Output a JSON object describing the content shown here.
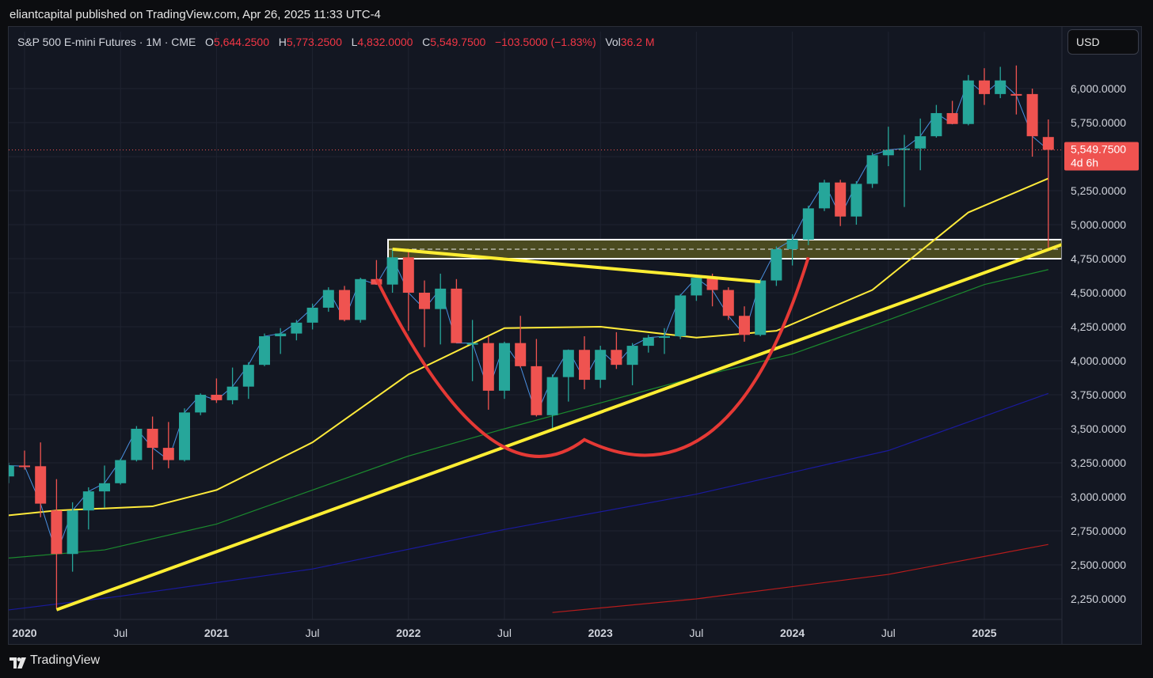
{
  "header": {
    "publish_text": "eliantcapital published on TradingView.com, Apr 26, 2025 11:33 UTC-4"
  },
  "legend": {
    "symbol": "S&P 500 E-mini Futures · 1M · CME",
    "open_label": "O",
    "open_value": "5,644.2500",
    "high_label": "H",
    "high_value": "5,773.2500",
    "low_label": "L",
    "low_value": "4,832.0000",
    "close_label": "C",
    "close_value": "5,549.7500",
    "change": "−103.5000 (−1.83%)",
    "vol_label": "Vol",
    "vol_value": "36.2 M"
  },
  "currency_button": "USD",
  "price_badge": {
    "price": "5,549.7500",
    "countdown": "4d 6h"
  },
  "footer": {
    "brand": "TradingView"
  },
  "colors": {
    "up": "#26a69a",
    "down": "#ef5350",
    "ma_yellow": "#ffeb3b",
    "ma_green": "#1b8a2e",
    "ma_blue": "#1a1a9c",
    "ma_red": "#b71c1c",
    "trend_yellow": "#ffee33",
    "cup_red": "#e53935",
    "zone_fill": "#4a4a20"
  },
  "chart_data": {
    "type": "candlestick",
    "title": "S&P 500 E-mini Futures · 1M · CME",
    "y_ticks": [
      "2,250.0000",
      "2,500.0000",
      "2,750.0000",
      "3,000.0000",
      "3,250.0000",
      "3,500.0000",
      "3,750.0000",
      "4,000.0000",
      "4,250.0000",
      "4,500.0000",
      "4,750.0000",
      "5,000.0000",
      "5,250.0000",
      "5,500.0000",
      "5,750.0000",
      "6,000.0000"
    ],
    "y_tick_values": [
      2250,
      2500,
      2750,
      3000,
      3250,
      3500,
      3750,
      4000,
      4250,
      4500,
      4750,
      5000,
      5250,
      5500,
      5750,
      6000
    ],
    "x_ticks": [
      {
        "label": "2020",
        "date": "2020-01",
        "bold": true
      },
      {
        "label": "Jul",
        "date": "2020-07",
        "bold": false
      },
      {
        "label": "2021",
        "date": "2021-01",
        "bold": true
      },
      {
        "label": "Jul",
        "date": "2021-07",
        "bold": false
      },
      {
        "label": "2022",
        "date": "2022-01",
        "bold": true
      },
      {
        "label": "Jul",
        "date": "2022-07",
        "bold": false
      },
      {
        "label": "2023",
        "date": "2023-01",
        "bold": true
      },
      {
        "label": "Jul",
        "date": "2023-07",
        "bold": false
      },
      {
        "label": "2024",
        "date": "2024-01",
        "bold": true
      },
      {
        "label": "Jul",
        "date": "2024-07",
        "bold": false
      },
      {
        "label": "2025",
        "date": "2025-01",
        "bold": true
      }
    ],
    "ylim": [
      2150,
      6180
    ],
    "candles": [
      {
        "date": "2019-11",
        "o": 3040,
        "h": 3160,
        "l": 3020,
        "c": 3150
      },
      {
        "date": "2019-12",
        "o": 3150,
        "h": 3250,
        "l": 3100,
        "c": 3230
      },
      {
        "date": "2020-01",
        "o": 3230,
        "h": 3340,
        "l": 3200,
        "c": 3225
      },
      {
        "date": "2020-02",
        "o": 3225,
        "h": 3400,
        "l": 2850,
        "c": 2950
      },
      {
        "date": "2020-03",
        "o": 2900,
        "h": 3130,
        "l": 2180,
        "c": 2580
      },
      {
        "date": "2020-04",
        "o": 2580,
        "h": 2960,
        "l": 2450,
        "c": 2900
      },
      {
        "date": "2020-05",
        "o": 2900,
        "h": 3070,
        "l": 2760,
        "c": 3040
      },
      {
        "date": "2020-06",
        "o": 3040,
        "h": 3230,
        "l": 2920,
        "c": 3100
      },
      {
        "date": "2020-07",
        "o": 3100,
        "h": 3280,
        "l": 3090,
        "c": 3270
      },
      {
        "date": "2020-08",
        "o": 3270,
        "h": 3520,
        "l": 3260,
        "c": 3500
      },
      {
        "date": "2020-09",
        "o": 3500,
        "h": 3590,
        "l": 3200,
        "c": 3360
      },
      {
        "date": "2020-10",
        "o": 3360,
        "h": 3550,
        "l": 3210,
        "c": 3270
      },
      {
        "date": "2020-11",
        "o": 3270,
        "h": 3650,
        "l": 3260,
        "c": 3620
      },
      {
        "date": "2020-12",
        "o": 3620,
        "h": 3760,
        "l": 3600,
        "c": 3750
      },
      {
        "date": "2021-01",
        "o": 3750,
        "h": 3870,
        "l": 3690,
        "c": 3710
      },
      {
        "date": "2021-02",
        "o": 3710,
        "h": 3950,
        "l": 3680,
        "c": 3810
      },
      {
        "date": "2021-03",
        "o": 3810,
        "h": 3990,
        "l": 3720,
        "c": 3970
      },
      {
        "date": "2021-04",
        "o": 3970,
        "h": 4200,
        "l": 3960,
        "c": 4180
      },
      {
        "date": "2021-05",
        "o": 4180,
        "h": 4240,
        "l": 4050,
        "c": 4200
      },
      {
        "date": "2021-06",
        "o": 4200,
        "h": 4300,
        "l": 4150,
        "c": 4280
      },
      {
        "date": "2021-07",
        "o": 4280,
        "h": 4420,
        "l": 4230,
        "c": 4390
      },
      {
        "date": "2021-08",
        "o": 4390,
        "h": 4540,
        "l": 4360,
        "c": 4520
      },
      {
        "date": "2021-09",
        "o": 4520,
        "h": 4550,
        "l": 4290,
        "c": 4300
      },
      {
        "date": "2021-10",
        "o": 4300,
        "h": 4610,
        "l": 4280,
        "c": 4600
      },
      {
        "date": "2021-11",
        "o": 4600,
        "h": 4740,
        "l": 4560,
        "c": 4560
      },
      {
        "date": "2021-12",
        "o": 4560,
        "h": 4820,
        "l": 4500,
        "c": 4760
      },
      {
        "date": "2022-01",
        "o": 4760,
        "h": 4810,
        "l": 4220,
        "c": 4500
      },
      {
        "date": "2022-02",
        "o": 4500,
        "h": 4590,
        "l": 4100,
        "c": 4380
      },
      {
        "date": "2022-03",
        "o": 4380,
        "h": 4640,
        "l": 4120,
        "c": 4530
      },
      {
        "date": "2022-04",
        "o": 4530,
        "h": 4600,
        "l": 4130,
        "c": 4130
      },
      {
        "date": "2022-05",
        "o": 4130,
        "h": 4300,
        "l": 3850,
        "c": 4130
      },
      {
        "date": "2022-06",
        "o": 4130,
        "h": 4180,
        "l": 3640,
        "c": 3780
      },
      {
        "date": "2022-07",
        "o": 3780,
        "h": 4140,
        "l": 3720,
        "c": 4130
      },
      {
        "date": "2022-08",
        "o": 4130,
        "h": 4330,
        "l": 3950,
        "c": 3960
      },
      {
        "date": "2022-09",
        "o": 3960,
        "h": 4160,
        "l": 3590,
        "c": 3600
      },
      {
        "date": "2022-10",
        "o": 3600,
        "h": 3900,
        "l": 3500,
        "c": 3880
      },
      {
        "date": "2022-11",
        "o": 3880,
        "h": 4080,
        "l": 3700,
        "c": 4080
      },
      {
        "date": "2022-12",
        "o": 4080,
        "h": 4180,
        "l": 3790,
        "c": 3860
      },
      {
        "date": "2023-01",
        "o": 3860,
        "h": 4110,
        "l": 3800,
        "c": 4080
      },
      {
        "date": "2023-02",
        "o": 4080,
        "h": 4210,
        "l": 3940,
        "c": 3970
      },
      {
        "date": "2023-03",
        "o": 3970,
        "h": 4130,
        "l": 3820,
        "c": 4110
      },
      {
        "date": "2023-04",
        "o": 4110,
        "h": 4190,
        "l": 4060,
        "c": 4170
      },
      {
        "date": "2023-05",
        "o": 4170,
        "h": 4240,
        "l": 4050,
        "c": 4180
      },
      {
        "date": "2023-06",
        "o": 4180,
        "h": 4490,
        "l": 4160,
        "c": 4480
      },
      {
        "date": "2023-07",
        "o": 4480,
        "h": 4620,
        "l": 4440,
        "c": 4610
      },
      {
        "date": "2023-08",
        "o": 4610,
        "h": 4640,
        "l": 4400,
        "c": 4520
      },
      {
        "date": "2023-09",
        "o": 4520,
        "h": 4540,
        "l": 4300,
        "c": 4330
      },
      {
        "date": "2023-10",
        "o": 4330,
        "h": 4400,
        "l": 4140,
        "c": 4190
      },
      {
        "date": "2023-11",
        "o": 4190,
        "h": 4600,
        "l": 4180,
        "c": 4590
      },
      {
        "date": "2023-12",
        "o": 4590,
        "h": 4840,
        "l": 4550,
        "c": 4820
      },
      {
        "date": "2024-01",
        "o": 4820,
        "h": 4930,
        "l": 4700,
        "c": 4890
      },
      {
        "date": "2024-02",
        "o": 4890,
        "h": 5140,
        "l": 4850,
        "c": 5120
      },
      {
        "date": "2024-03",
        "o": 5120,
        "h": 5330,
        "l": 5100,
        "c": 5310
      },
      {
        "date": "2024-04",
        "o": 5310,
        "h": 5330,
        "l": 4990,
        "c": 5060
      },
      {
        "date": "2024-05",
        "o": 5060,
        "h": 5320,
        "l": 5000,
        "c": 5300
      },
      {
        "date": "2024-06",
        "o": 5300,
        "h": 5530,
        "l": 5270,
        "c": 5510
      },
      {
        "date": "2024-07",
        "o": 5510,
        "h": 5720,
        "l": 5430,
        "c": 5550
      },
      {
        "date": "2024-08",
        "o": 5550,
        "h": 5660,
        "l": 5130,
        "c": 5560
      },
      {
        "date": "2024-09",
        "o": 5560,
        "h": 5780,
        "l": 5400,
        "c": 5650
      },
      {
        "date": "2024-10",
        "o": 5650,
        "h": 5880,
        "l": 5640,
        "c": 5820
      },
      {
        "date": "2024-11",
        "o": 5820,
        "h": 5910,
        "l": 5740,
        "c": 5740
      },
      {
        "date": "2024-12",
        "o": 5740,
        "h": 6100,
        "l": 5730,
        "c": 6060
      },
      {
        "date": "2025-01",
        "o": 6060,
        "h": 6150,
        "l": 5880,
        "c": 5960
      },
      {
        "date": "2025-02",
        "o": 5960,
        "h": 6160,
        "l": 5930,
        "c": 6060
      },
      {
        "date": "2025-03",
        "o": 5960,
        "h": 6170,
        "l": 5810,
        "c": 5950
      },
      {
        "date": "2025-04",
        "o": 5960,
        "h": 6000,
        "l": 5500,
        "c": 5650
      },
      {
        "date": "2025-05",
        "o": 5644.25,
        "h": 5773.25,
        "l": 4832,
        "c": 5549.75
      }
    ],
    "moving_averages": [
      {
        "color": "yellow",
        "points": [
          [
            "2019-10",
            2840
          ],
          [
            "2020-03",
            2900
          ],
          [
            "2020-09",
            2930
          ],
          [
            "2021-01",
            3050
          ],
          [
            "2021-07",
            3400
          ],
          [
            "2022-01",
            3900
          ],
          [
            "2022-07",
            4240
          ],
          [
            "2023-01",
            4250
          ],
          [
            "2023-07",
            4170
          ],
          [
            "2023-12",
            4220
          ],
          [
            "2024-06",
            4520
          ],
          [
            "2024-12",
            5090
          ],
          [
            "2025-05",
            5340
          ]
        ]
      },
      {
        "color": "green",
        "points": [
          [
            "2019-10",
            2530
          ],
          [
            "2020-06",
            2610
          ],
          [
            "2021-01",
            2800
          ],
          [
            "2021-07",
            3050
          ],
          [
            "2022-01",
            3300
          ],
          [
            "2022-07",
            3500
          ],
          [
            "2023-01",
            3690
          ],
          [
            "2023-07",
            3880
          ],
          [
            "2024-01",
            4050
          ],
          [
            "2024-07",
            4300
          ],
          [
            "2025-01",
            4560
          ],
          [
            "2025-05",
            4670
          ]
        ]
      },
      {
        "color": "blue",
        "points": [
          [
            "2019-10",
            2140
          ],
          [
            "2020-07",
            2270
          ],
          [
            "2021-07",
            2470
          ],
          [
            "2022-07",
            2760
          ],
          [
            "2023-07",
            3020
          ],
          [
            "2024-07",
            3340
          ],
          [
            "2025-05",
            3760
          ]
        ]
      },
      {
        "color": "red",
        "points": [
          [
            "2022-10",
            2150
          ],
          [
            "2023-07",
            2250
          ],
          [
            "2024-07",
            2430
          ],
          [
            "2025-05",
            2650
          ]
        ]
      }
    ],
    "drawings": {
      "resistance_zone": [
        4750,
        4890
      ],
      "zone_midline": 4820,
      "rising_trendline": [
        [
          "2020-03",
          2170
        ],
        [
          "2025-06",
          4860
        ]
      ],
      "falling_trendline": [
        [
          "2021-12",
          4820
        ],
        [
          "2023-11",
          4580
        ]
      ],
      "cup_arc": {
        "left": [
          "2021-11",
          4600
        ],
        "bottom": [
          "2022-12",
          3420
        ],
        "right": [
          "2024-02",
          4760
        ]
      }
    }
  }
}
